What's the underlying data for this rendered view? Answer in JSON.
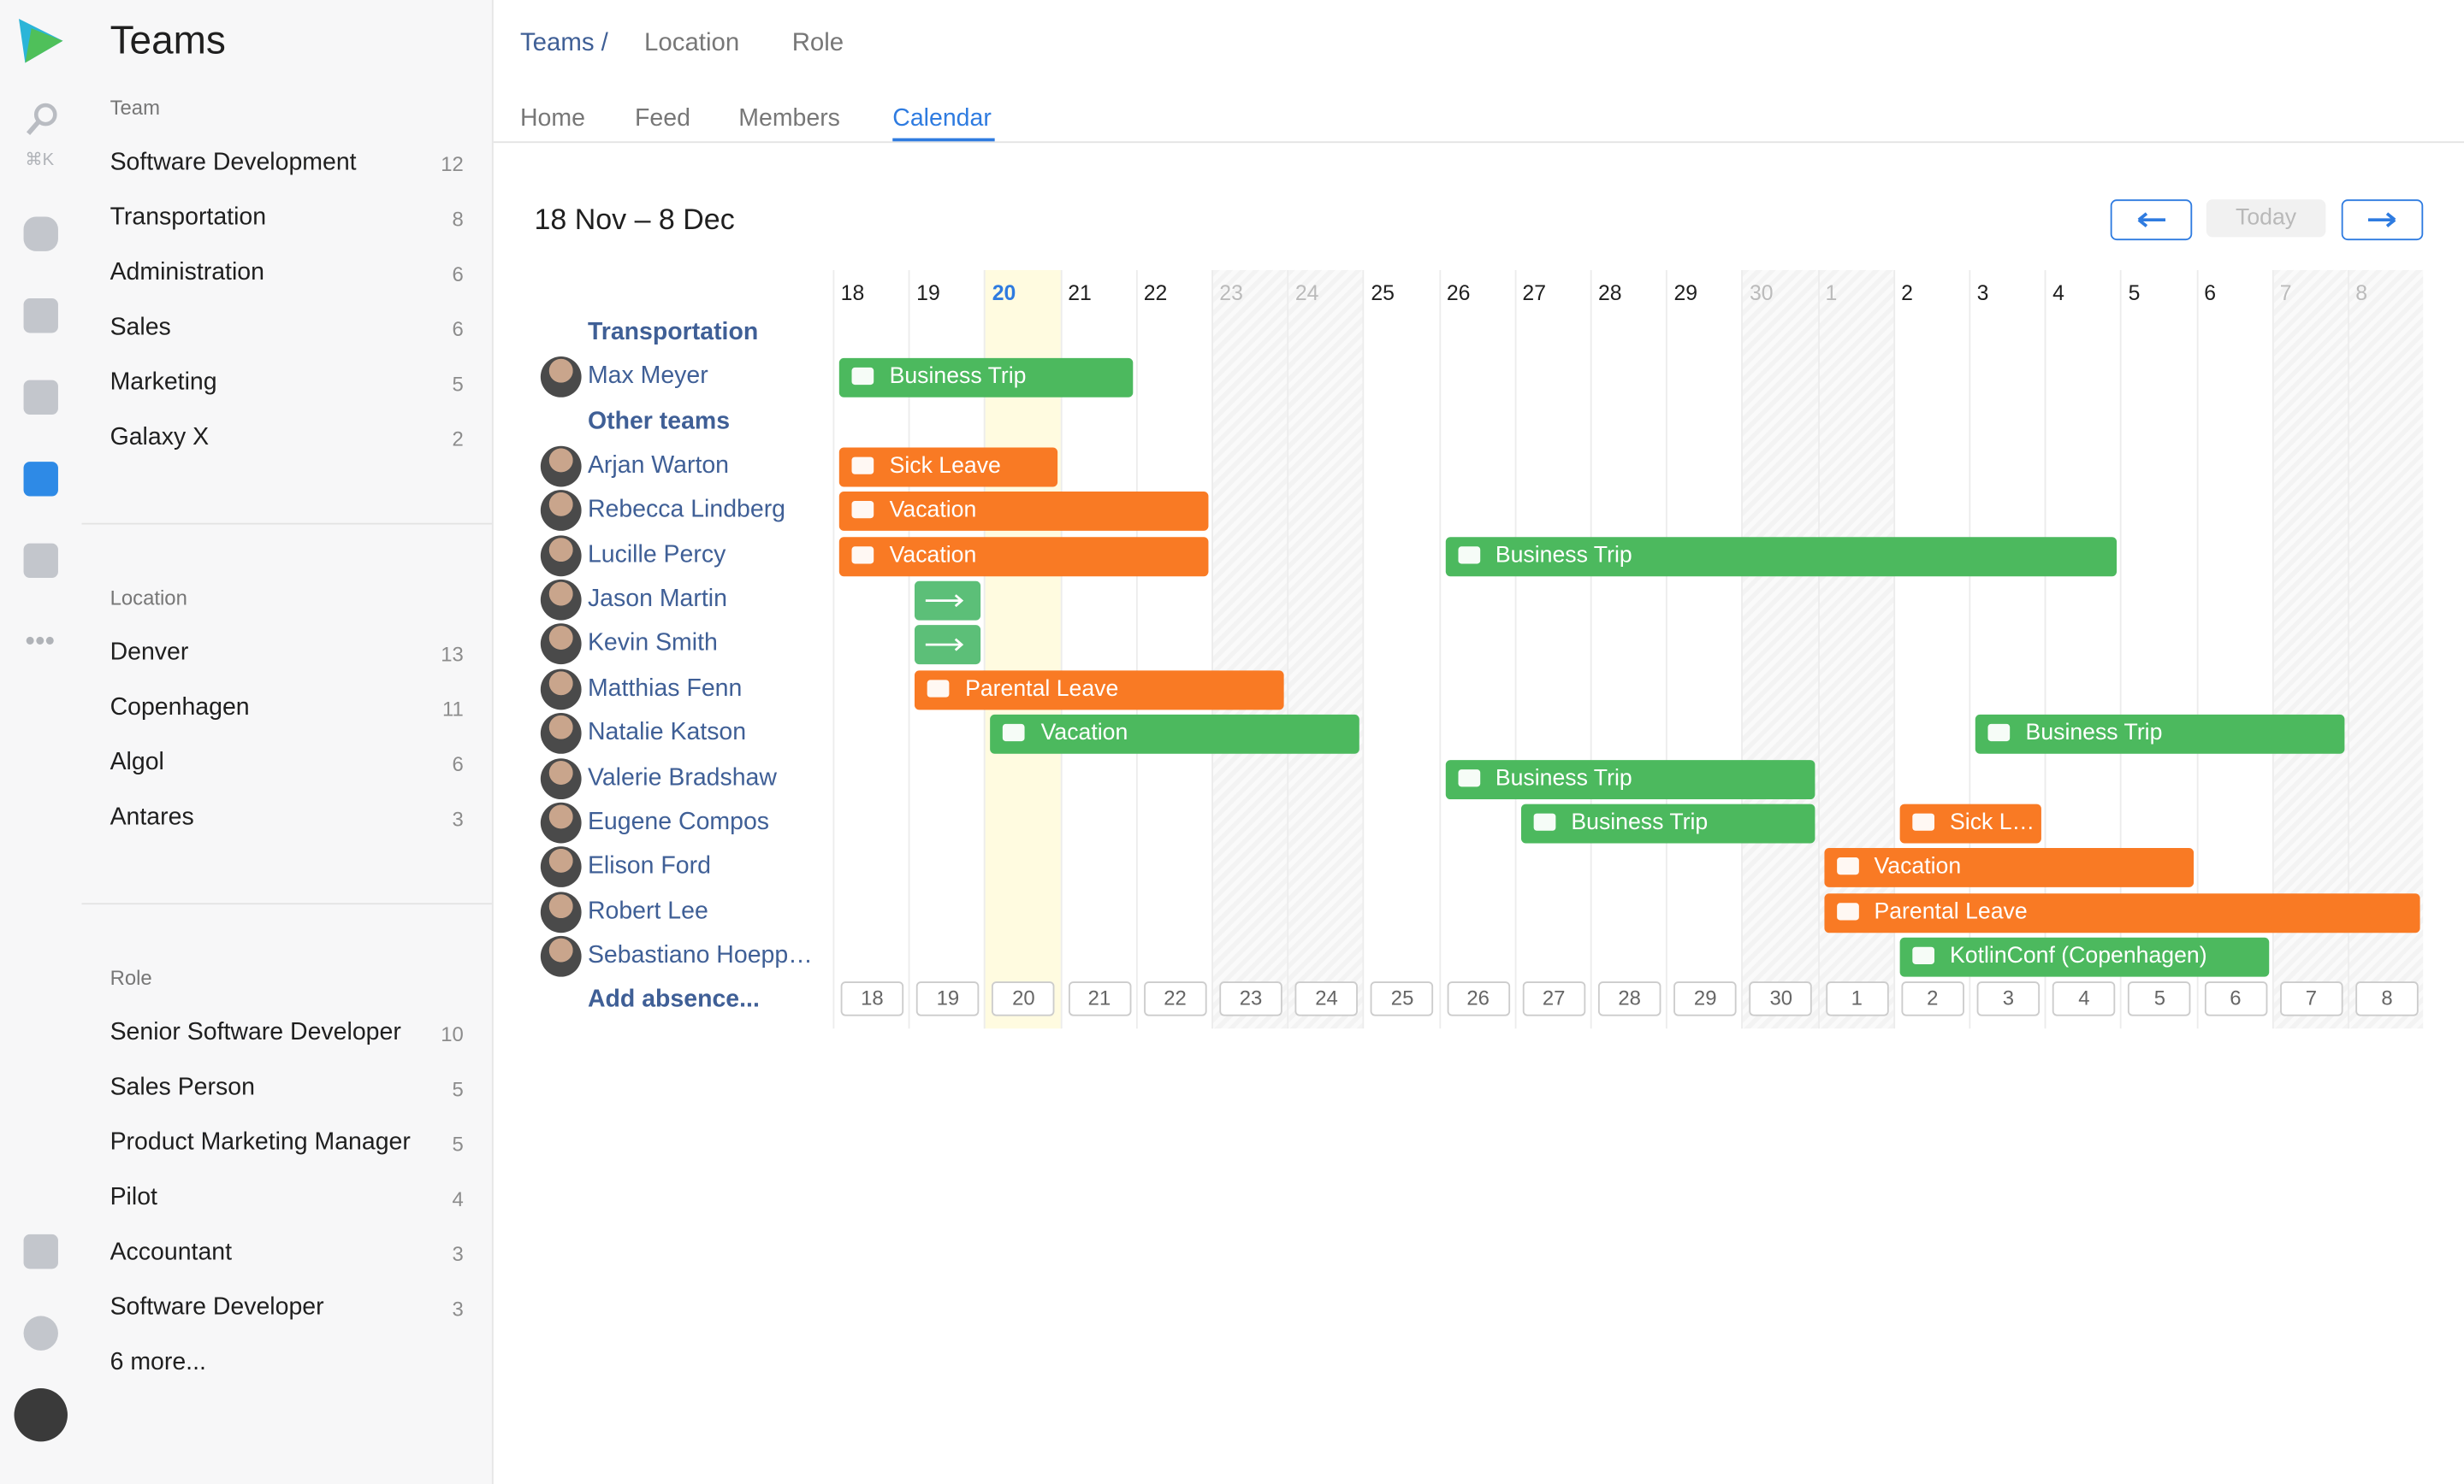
{
  "rail": {
    "shortcut": "⌘K"
  },
  "sidebar": {
    "title": "Teams",
    "sections": [
      {
        "heading": "Team",
        "items": [
          {
            "name": "Software Development",
            "count": "12"
          },
          {
            "name": "Transportation",
            "count": "8"
          },
          {
            "name": "Administration",
            "count": "6"
          },
          {
            "name": "Sales",
            "count": "6"
          },
          {
            "name": "Marketing",
            "count": "5"
          },
          {
            "name": "Galaxy X",
            "count": "2"
          }
        ]
      },
      {
        "heading": "Location",
        "items": [
          {
            "name": "Denver",
            "count": "13"
          },
          {
            "name": "Copenhagen",
            "count": "11"
          },
          {
            "name": "Algol",
            "count": "6"
          },
          {
            "name": "Antares",
            "count": "3"
          }
        ]
      },
      {
        "heading": "Role",
        "items": [
          {
            "name": "Senior Software Developer",
            "count": "10"
          },
          {
            "name": "Sales Person",
            "count": "5"
          },
          {
            "name": "Product Marketing Manager",
            "count": "5"
          },
          {
            "name": "Pilot",
            "count": "4"
          },
          {
            "name": "Accountant",
            "count": "3"
          },
          {
            "name": "Software Developer",
            "count": "3"
          }
        ]
      }
    ],
    "more": "6 more..."
  },
  "header": {
    "breadcrumb": "Teams /",
    "filters": [
      "Location",
      "Role"
    ],
    "tabs": [
      "Home",
      "Feed",
      "Members",
      "Calendar"
    ],
    "active_tab": "Calendar"
  },
  "calendar": {
    "range": "18 Nov – 8 Dec",
    "today_button": "Today",
    "days": [
      "18",
      "19",
      "20",
      "21",
      "22",
      "23",
      "24",
      "25",
      "26",
      "27",
      "28",
      "29",
      "30",
      "1",
      "2",
      "3",
      "4",
      "5",
      "6",
      "7",
      "8"
    ],
    "weekend": [
      "23",
      "24",
      "30",
      "1",
      "7",
      "8"
    ],
    "today": "20",
    "groups": [
      {
        "name": "Transportation",
        "members": [
          {
            "name": "Max Meyer",
            "absences": [
              {
                "label": "Business Trip",
                "start": "18",
                "end": "21",
                "color": "#4cb95e"
              }
            ]
          }
        ]
      },
      {
        "name": "Other teams",
        "members": [
          {
            "name": "Arjan Warton",
            "absences": [
              {
                "label": "Sick Leave",
                "start": "18",
                "end": "20",
                "color": "#f97a24"
              }
            ]
          },
          {
            "name": "Rebecca Lindberg",
            "absences": [
              {
                "label": "Vacation",
                "start": "18",
                "end": "22",
                "color": "#f97a24"
              }
            ]
          },
          {
            "name": "Lucille Percy",
            "absences": [
              {
                "label": "Vacation",
                "start": "18",
                "end": "22",
                "color": "#f97a24"
              },
              {
                "label": "Business Trip",
                "start": "26",
                "end": "4",
                "color": "#4cb95e"
              }
            ]
          },
          {
            "name": "Jason Martin",
            "absences": [
              {
                "start": "19",
                "end": "19",
                "color": "#5cbf78"
              }
            ]
          },
          {
            "name": "Kevin Smith",
            "absences": [
              {
                "start": "19",
                "end": "19",
                "color": "#5cbf78"
              }
            ]
          },
          {
            "name": "Matthias Fenn",
            "absences": [
              {
                "label": "Parental Leave",
                "start": "19",
                "end": "23",
                "color": "#f97a24"
              }
            ]
          },
          {
            "name": "Natalie Katson",
            "absences": [
              {
                "label": "Vacation",
                "start": "20",
                "end": "24",
                "color": "#4cb95e"
              },
              {
                "label": "Business Trip",
                "start": "3",
                "end": "7",
                "color": "#4cb95e"
              }
            ]
          },
          {
            "name": "Valerie Bradshaw",
            "absences": [
              {
                "label": "Business Trip",
                "start": "26",
                "end": "30",
                "color": "#4cb95e"
              }
            ]
          },
          {
            "name": "Eugene Compos",
            "absences": [
              {
                "label": "Business Trip",
                "start": "27",
                "end": "30",
                "color": "#4cb95e"
              },
              {
                "label": "Sick L…",
                "start": "2",
                "end": "3",
                "color": "#f97a24"
              }
            ]
          },
          {
            "name": "Elison Ford",
            "absences": [
              {
                "label": "Vacation",
                "start": "1",
                "end": "5",
                "color": "#f97a24"
              }
            ]
          },
          {
            "name": "Robert Lee",
            "absences": [
              {
                "label": "Parental Leave",
                "start": "1",
                "end": "8",
                "color": "#f97a24"
              }
            ]
          },
          {
            "name": "Sebastiano Hoepp…",
            "absences": [
              {
                "label": "KotlinConf (Copenhagen)",
                "start": "2",
                "end": "6",
                "color": "#4cb95e"
              }
            ]
          }
        ]
      }
    ],
    "add": "Add absence..."
  }
}
